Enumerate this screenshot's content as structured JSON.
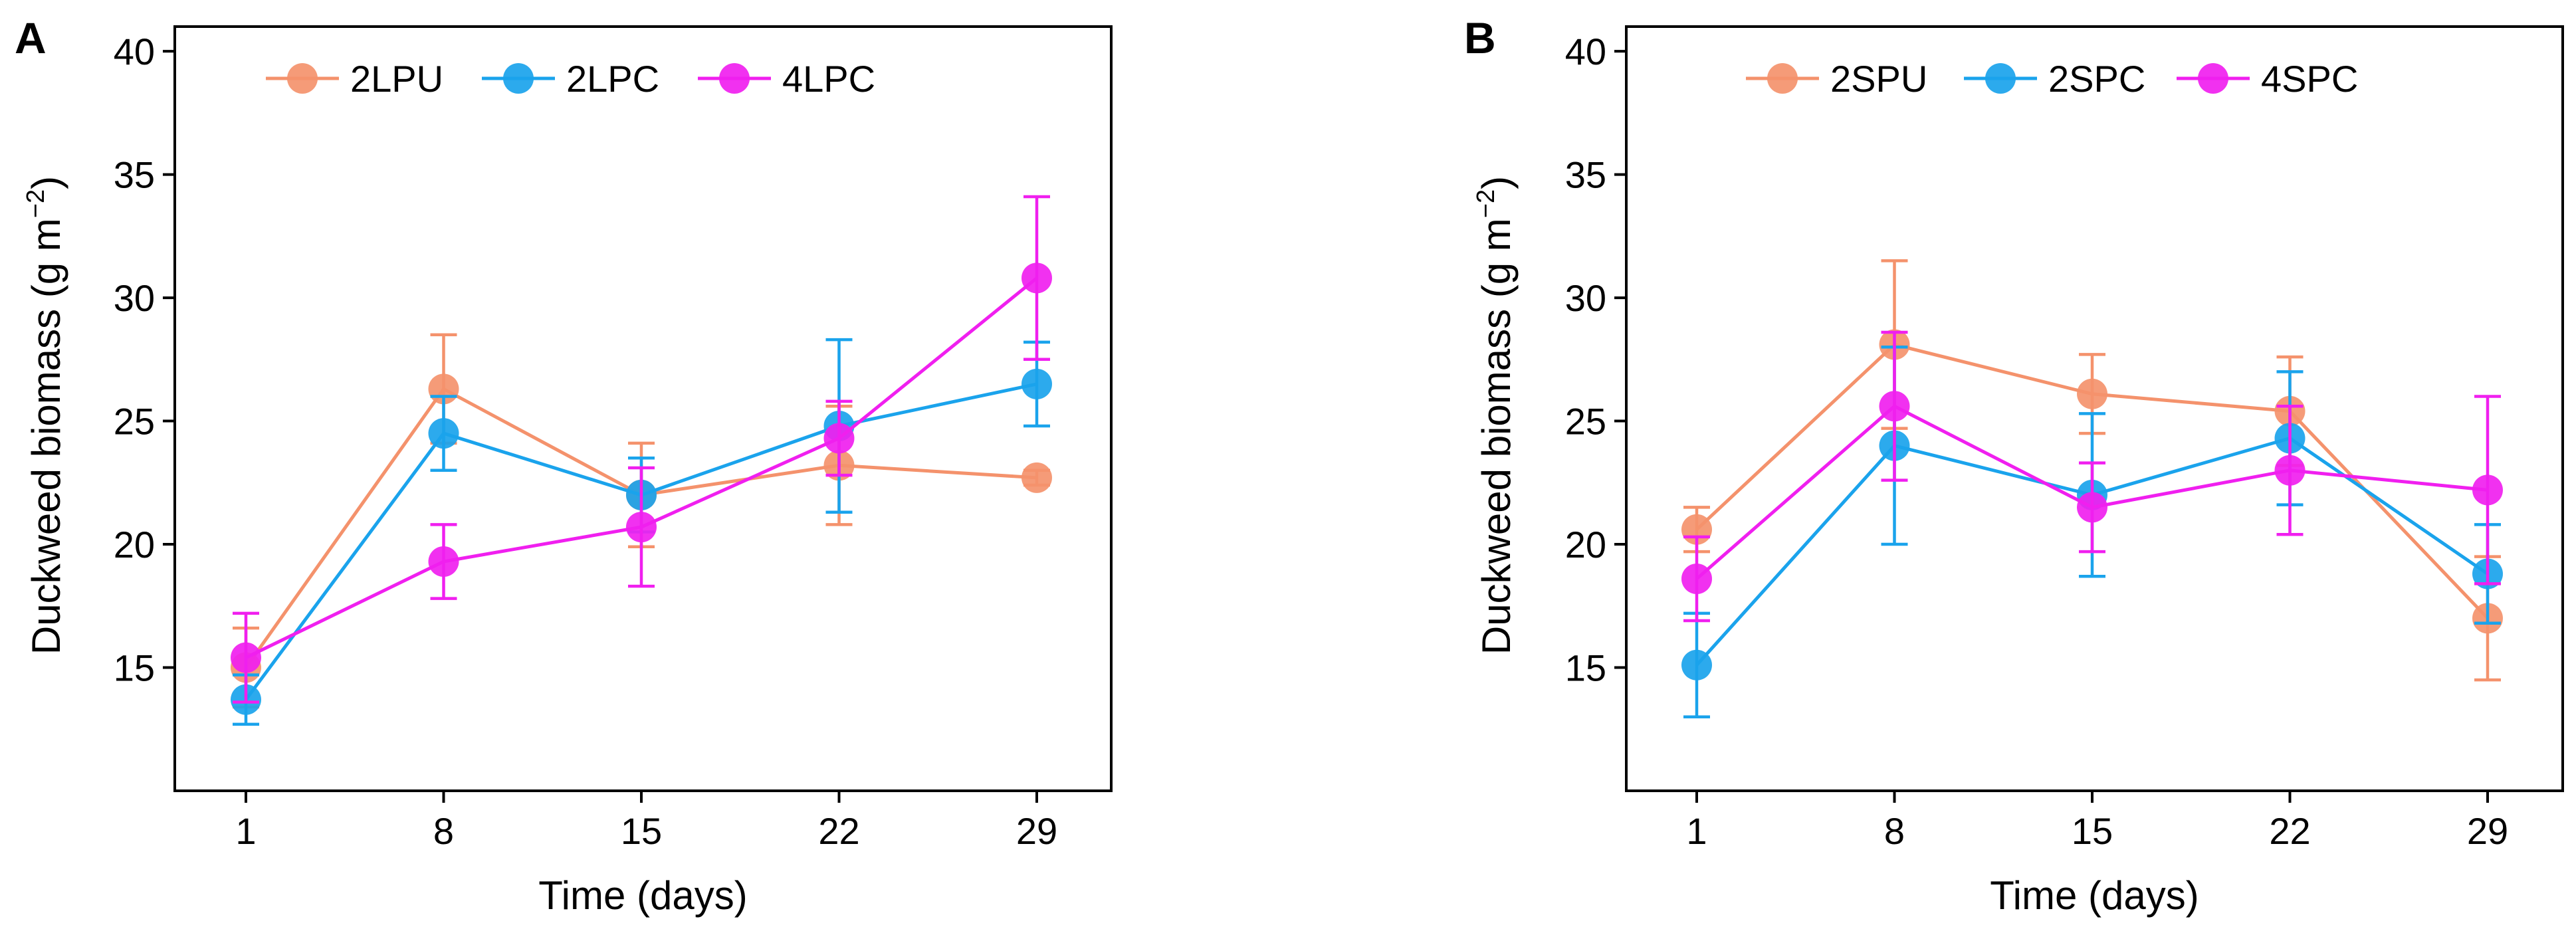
{
  "chart_data": [
    {
      "panel_label": "A",
      "type": "line",
      "x": [
        1,
        8,
        15,
        22,
        29
      ],
      "xlabel": "Time (days)",
      "ylabel_main": "Duckweed biomass (g m",
      "ylabel_exp": "−2",
      "ylabel_end": ")",
      "y_ticks": [
        15,
        20,
        25,
        30,
        35,
        40
      ],
      "ylim": [
        10,
        41
      ],
      "legend_position": "top",
      "series": [
        {
          "name": "2LPU",
          "color": "#F4926C",
          "values": [
            15.0,
            26.3,
            22.0,
            23.2,
            22.7
          ],
          "err": [
            1.6,
            2.2,
            2.1,
            2.4,
            0.3
          ]
        },
        {
          "name": "2LPC",
          "color": "#1AA3EC",
          "values": [
            13.7,
            24.5,
            22.0,
            24.8,
            26.5
          ],
          "err": [
            1.0,
            1.5,
            1.5,
            3.5,
            1.7
          ]
        },
        {
          "name": "4LPC",
          "color": "#F01FEF",
          "values": [
            15.4,
            19.3,
            20.7,
            24.3,
            30.8
          ],
          "err": [
            1.8,
            1.5,
            2.4,
            1.5,
            3.3
          ]
        }
      ]
    },
    {
      "panel_label": "B",
      "type": "line",
      "x": [
        1,
        8,
        15,
        22,
        29
      ],
      "xlabel": "Time (days)",
      "ylabel_main": "Duckweed biomass (g m",
      "ylabel_exp": "−2",
      "ylabel_end": ")",
      "y_ticks": [
        15,
        20,
        25,
        30,
        35,
        40
      ],
      "ylim": [
        10,
        41
      ],
      "legend_position": "top",
      "series": [
        {
          "name": "2SPU",
          "color": "#F4926C",
          "values": [
            20.6,
            28.1,
            26.1,
            25.4,
            17.0
          ],
          "err": [
            0.9,
            3.4,
            1.6,
            2.2,
            2.5
          ]
        },
        {
          "name": "2SPC",
          "color": "#1AA3EC",
          "values": [
            15.1,
            24.0,
            22.0,
            24.3,
            18.8
          ],
          "err": [
            2.1,
            4.0,
            3.3,
            2.7,
            2.0
          ]
        },
        {
          "name": "4SPC",
          "color": "#F01FEF",
          "values": [
            18.6,
            25.6,
            21.5,
            23.0,
            22.2
          ],
          "err": [
            1.7,
            3.0,
            1.8,
            2.6,
            3.8
          ]
        }
      ]
    }
  ]
}
